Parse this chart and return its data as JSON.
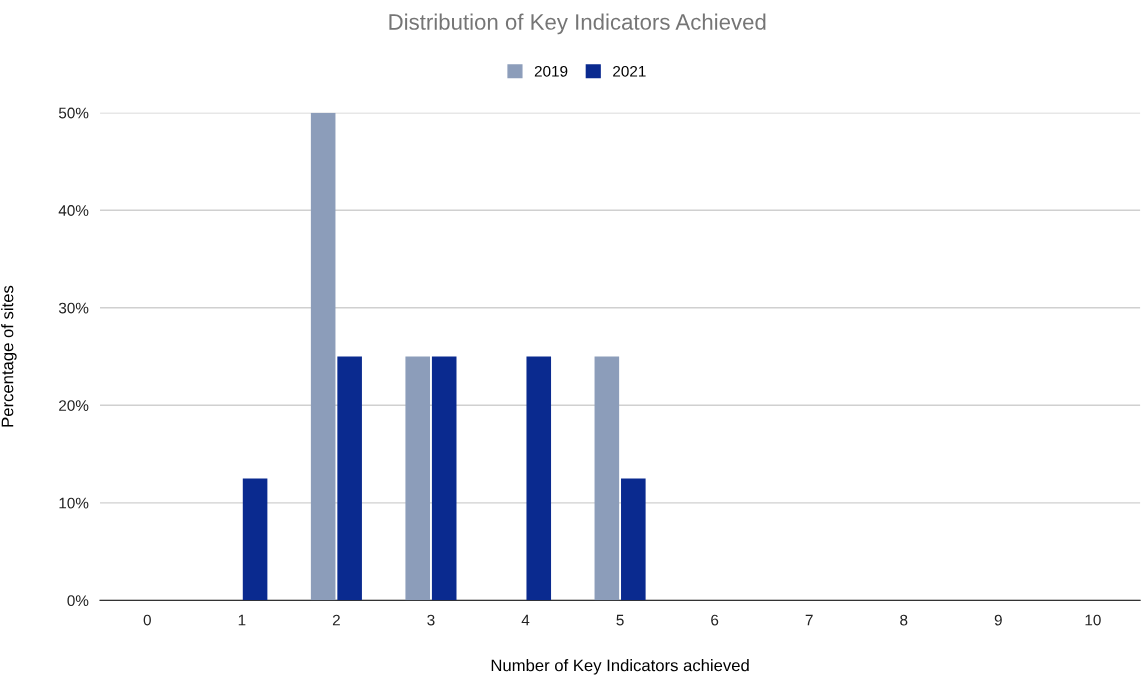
{
  "chart_data": {
    "type": "bar",
    "title": "Distribution of Key Indicators Achieved",
    "xlabel": "Number of Key Indicators achieved",
    "ylabel": "Percentage of sites",
    "categories": [
      "0",
      "1",
      "2",
      "3",
      "4",
      "5",
      "6",
      "7",
      "8",
      "9",
      "10"
    ],
    "series": [
      {
        "name": "2019",
        "color": "#8c9dba",
        "values": [
          0,
          0,
          50,
          25,
          0,
          25,
          0,
          0,
          0,
          0,
          0
        ]
      },
      {
        "name": "2021",
        "color": "#0a2a8f",
        "values": [
          0,
          12.5,
          25,
          25,
          25,
          12.5,
          0,
          0,
          0,
          0,
          0
        ]
      }
    ],
    "ylim": [
      0,
      50
    ],
    "yticks": [
      {
        "value": 0,
        "label": "0%"
      },
      {
        "value": 10,
        "label": "10%"
      },
      {
        "value": 20,
        "label": "20%"
      },
      {
        "value": 30,
        "label": "30%"
      },
      {
        "value": 40,
        "label": "40%"
      },
      {
        "value": 50,
        "label": "50%"
      }
    ],
    "grid": "y",
    "legend": "top"
  }
}
